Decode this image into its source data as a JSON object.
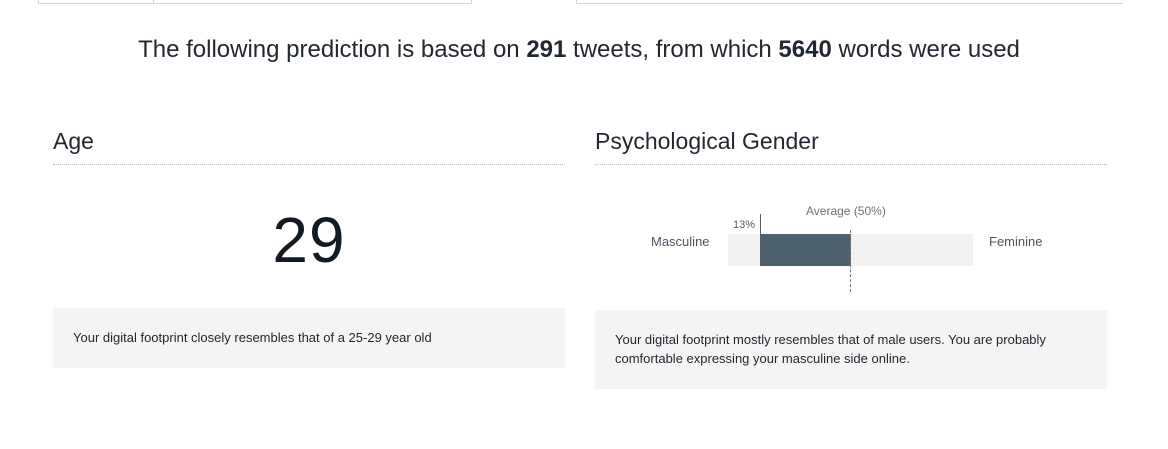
{
  "summary": {
    "prefix": "The following prediction is based on ",
    "tweets_count": "291",
    "middle": " tweets, from which ",
    "words_count": "5640",
    "suffix": " words were used"
  },
  "age": {
    "title": "Age",
    "value": "29",
    "description": "Your digital footprint closely resembles that of a 25-29 year old"
  },
  "gender": {
    "title": "Psychological Gender",
    "left_label": "Masculine",
    "right_label": "Feminine",
    "average_label": "Average (50%)",
    "score_label": "13%",
    "score_fraction": 0.13,
    "average_fraction": 0.5,
    "fill_color": "#4f616c",
    "description": "Your digital footprint mostly resembles that of male users. You are probably comfortable expressing your masculine side online."
  }
}
